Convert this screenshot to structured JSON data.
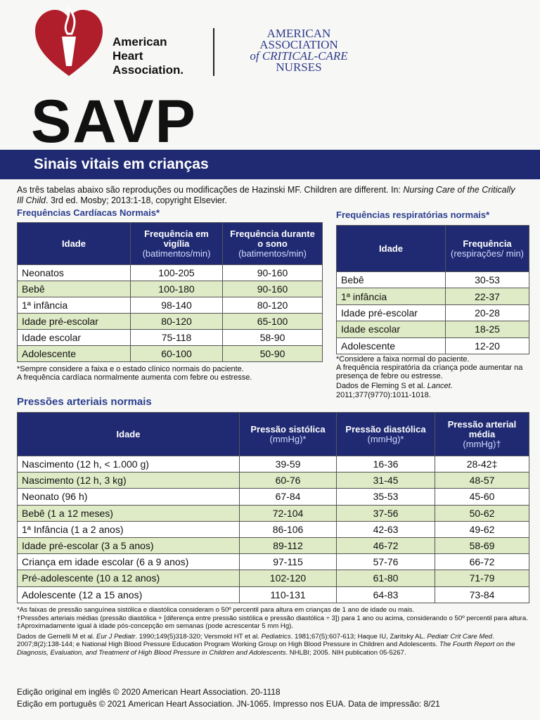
{
  "header": {
    "aha": [
      "American",
      "Heart",
      "Association."
    ],
    "aacn": [
      "AMERICAN",
      "ASSOCIATION",
      "of CRITICAL-CARE",
      "NURSES"
    ]
  },
  "title": "SAVP",
  "banner": "Sinais vitais em crianças",
  "intro": [
    "As três tabelas abaixo são reproduções ou modificações de Hazinski MF. Children are different. In: ",
    "Nursing Care of the Critically Ill Child",
    ". 3rd ed. Mosby; 2013:1-18, copyright Elsevier."
  ],
  "heart": {
    "title": "Frequências Cardíacas Normais*",
    "headers": [
      {
        "label": "Idade"
      },
      {
        "label": "Frequência em vigília",
        "unit": "(batimentos/min)"
      },
      {
        "label": "Frequência durante o sono",
        "unit": "(batimentos/min)"
      }
    ],
    "rows": [
      [
        "Neonatos",
        "100-205",
        "90-160"
      ],
      [
        "Bebê",
        "100-180",
        "90-160"
      ],
      [
        "1ª infância",
        "98-140",
        "80-120"
      ],
      [
        "Idade pré-escolar",
        "80-120",
        "65-100"
      ],
      [
        "Idade escolar",
        "75-118",
        "58-90"
      ],
      [
        "Adolescente",
        "60-100",
        "50-90"
      ]
    ],
    "notes": [
      "*Sempre considere a faixa e o estado clínico normais do paciente.",
      "A frequência cardíaca normalmente aumenta com febre ou estresse."
    ]
  },
  "resp": {
    "title": "Frequências respiratórias normais*",
    "headers": [
      {
        "label": "Idade"
      },
      {
        "label": "Frequência",
        "unit": "(respirações/ min)"
      }
    ],
    "rows": [
      [
        "Bebê",
        "30-53"
      ],
      [
        "1ª infância",
        "22-37"
      ],
      [
        "Idade pré-escolar",
        "20-28"
      ],
      [
        "Idade escolar",
        "18-25"
      ],
      [
        "Adolescente",
        "12-20"
      ]
    ],
    "notes": [
      "*Considere a faixa normal do paciente.",
      "A frequência respiratória da criança pode aumentar na presença de febre ou estresse."
    ],
    "source": [
      "Dados de Fleming S et al. ",
      "Lancet",
      ". 2011;377(9770):1011-1018."
    ]
  },
  "bp": {
    "title": "Pressões arteriais normais",
    "headers": [
      {
        "label": "Idade"
      },
      {
        "label": "Pressão sistólica",
        "unit": "(mmHg)*"
      },
      {
        "label": "Pressão diastólica",
        "unit": "(mmHg)*"
      },
      {
        "label": "Pressão arterial média",
        "unit": "(mmHg)†"
      }
    ],
    "rows": [
      [
        "Nascimento (12 h, < 1.000 g)",
        "39-59",
        "16-36",
        "28-42‡"
      ],
      [
        "Nascimento (12 h, 3 kg)",
        "60-76",
        "31-45",
        "48-57"
      ],
      [
        "Neonato (96 h)",
        "67-84",
        "35-53",
        "45-60"
      ],
      [
        "Bebê (1 a 12 meses)",
        "72-104",
        "37-56",
        "50-62"
      ],
      [
        "1ª Infância (1 a 2 anos)",
        "86-106",
        "42-63",
        "49-62"
      ],
      [
        "Idade pré-escolar (3 a 5 anos)",
        "89-112",
        "46-72",
        "58-69"
      ],
      [
        "Criança em idade escolar (6 a 9 anos)",
        "97-115",
        "57-76",
        "66-72"
      ],
      [
        "Pré-adolescente (10 a 12 anos)",
        "102-120",
        "61-80",
        "71-79"
      ],
      [
        "Adolescente (12 a 15 anos)",
        "110-131",
        "64-83",
        "73-84"
      ]
    ],
    "footnotes": [
      "*As faixas de pressão sanguínea sistólica e diastólica consideram o 50º percentil para altura em crianças de 1 ano de idade ou mais.",
      "†Pressões arteriais médias (pressão diastólica + [diferença entre pressão sistólica e pressão diastólica ÷ 3]) para 1 ano ou acima, considerando o 50º percentil para altura.",
      "‡Aproximadamente igual à idade pós-concepção em semanas (pode acrescentar 5 mm Hg)."
    ],
    "references": [
      "Dados de Gemelli M et al. ",
      "Eur J Pediatr",
      ". 1990;149(5)318-320; Versmold HT et al. ",
      "Pediatrics",
      ". 1981;67(5):607-613; Haque IU, Zaritsky AL. ",
      "Pediatr Crit Care Med",
      ". 2007;8(2):138-144; e National High Blood Pressure Education Program Working Group on High Blood Pressure in Children and Adolescents. ",
      "The Fourth Report on the Diagnosis, Evaluation, and Treatment of High Blood Pressure in Children and Adolescents",
      ". NHLBI; 2005. NIH publication 05-5267."
    ]
  },
  "edition": [
    "Edição original em inglês © 2020 American Heart Association. 20-1118",
    "Edição em português © 2021 American Heart Association. JN-1065. Impresso nos EUA. Data de impressão: 8/21"
  ]
}
